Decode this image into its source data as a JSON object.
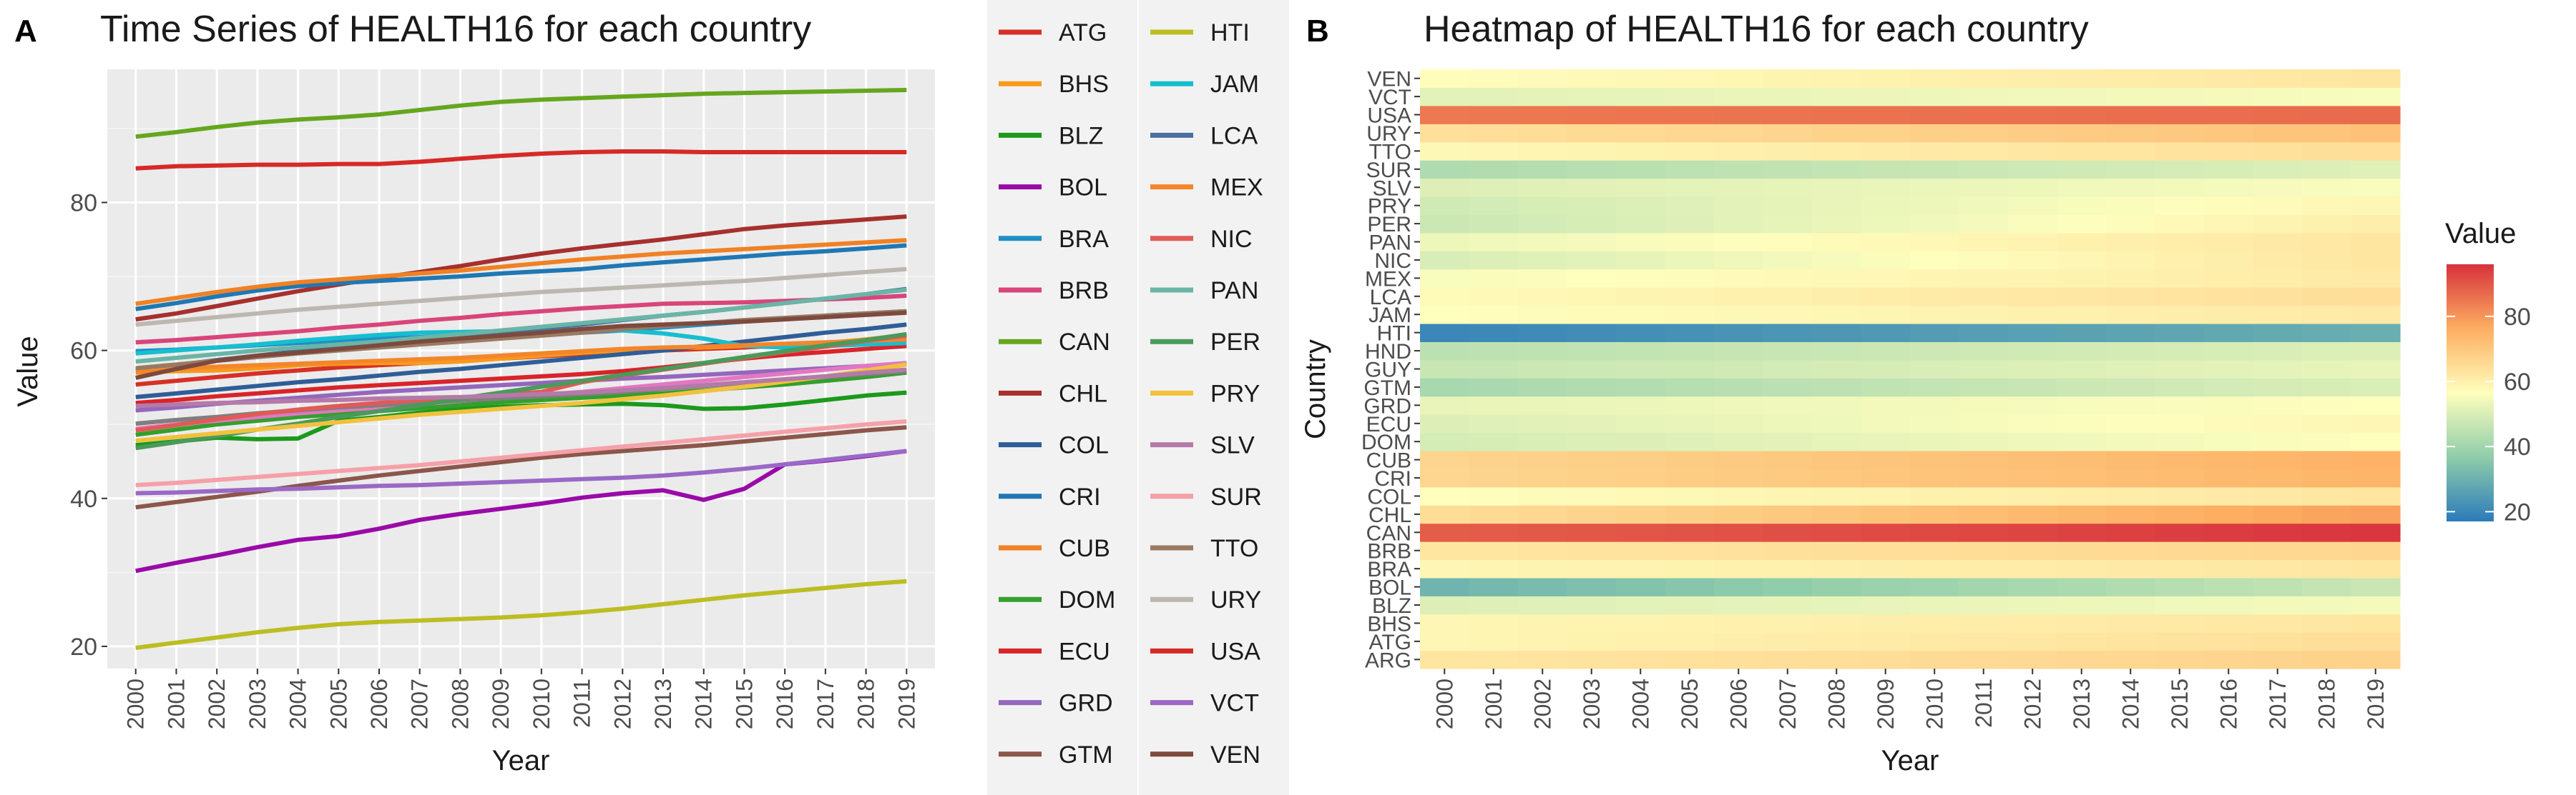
{
  "panel_a": {
    "tag": "A",
    "title": "Time Series of HEALTH16 for each country",
    "xlabel": "Year",
    "ylabel": "Value"
  },
  "panel_b": {
    "tag": "B",
    "title": "Heatmap of HEALTH16 for each country",
    "xlabel": "Year",
    "ylabel": "Country",
    "colorbar_title": "Value"
  },
  "colors": {
    "ATG": "#d73027",
    "BHS": "#f79a1c",
    "BLZ": "#1b9a1b",
    "BOL": "#9a0aa8",
    "BRA": "#1e8fc6",
    "BRB": "#d9457a",
    "CAN": "#66a61e",
    "CHL": "#a6302e",
    "COL": "#2f5d98",
    "CRI": "#1f78b4",
    "CUB": "#f08124",
    "DOM": "#33a02c",
    "ECU": "#d8242a",
    "GRD": "#9467bd",
    "GTM": "#8c564b",
    "GUY": "#e377c2",
    "HND": "#7f7f7f",
    "HTI": "#bcbd22",
    "JAM": "#17becf",
    "LCA": "#4a6fa0",
    "MEX": "#f4862a",
    "NIC": "#e05a57",
    "PAN": "#6ab5a6",
    "PER": "#4a9a5a",
    "PRY": "#f2c13d",
    "SLV": "#b57aa8",
    "SUR": "#f6a0a8",
    "TTO": "#9a7a62",
    "URY": "#bcb7b0",
    "USA": "#d62a27",
    "VCT": "#9a68c6",
    "VEN": "#7d4a3e"
  },
  "chart_data": [
    {
      "type": "line",
      "x": [
        2000,
        2001,
        2002,
        2003,
        2004,
        2005,
        2006,
        2007,
        2008,
        2009,
        2010,
        2011,
        2012,
        2013,
        2014,
        2015,
        2016,
        2017,
        2018,
        2019
      ],
      "xlim": [
        1999.3,
        2019.7
      ],
      "ylim": [
        17,
        98
      ],
      "yticks": [
        20,
        40,
        60,
        80
      ],
      "grid": true,
      "legend_position": "right",
      "series": [
        {
          "name": "ATG",
          "values": [
            55.4,
            55.9,
            56.4,
            56.9,
            57.3,
            57.7,
            58.0,
            58.3,
            58.6,
            58.9,
            59.2,
            59.5,
            59.7,
            60.0,
            60.2,
            60.4,
            60.7,
            60.9,
            61.1,
            61.4
          ]
        },
        {
          "name": "BHS",
          "values": [
            57.0,
            57.2,
            57.3,
            57.6,
            58.0,
            58.2,
            58.3,
            58.3,
            58.5,
            58.9,
            59.3,
            59.7,
            60.0,
            60.3,
            60.4,
            60.6,
            60.8,
            61.0,
            61.5,
            62.1
          ]
        },
        {
          "name": "BLZ",
          "values": [
            47.2,
            47.7,
            48.2,
            48.0,
            48.1,
            50.5,
            51.0,
            51.6,
            52.1,
            52.4,
            52.6,
            52.7,
            52.8,
            52.6,
            52.1,
            52.2,
            52.7,
            53.3,
            53.9,
            54.3
          ]
        },
        {
          "name": "BOL",
          "values": [
            30.2,
            31.3,
            32.3,
            33.4,
            34.4,
            34.9,
            35.9,
            37.1,
            37.9,
            38.6,
            39.3,
            40.1,
            40.7,
            41.1,
            39.8,
            41.3,
            44.6,
            45.1,
            45.7,
            46.4
          ]
        },
        {
          "name": "BRA",
          "values": [
            59.9,
            60.1,
            60.4,
            60.7,
            61.0,
            61.3,
            61.6,
            61.8,
            62.0,
            62.1,
            62.2,
            62.4,
            62.7,
            63.1,
            63.5,
            63.9,
            64.3,
            64.7,
            65.0,
            65.3
          ]
        },
        {
          "name": "BRB",
          "values": [
            61.1,
            61.4,
            61.8,
            62.2,
            62.6,
            63.1,
            63.5,
            64.0,
            64.4,
            64.9,
            65.3,
            65.7,
            66.0,
            66.3,
            66.4,
            66.5,
            66.7,
            66.9,
            67.1,
            67.4
          ]
        },
        {
          "name": "CAN",
          "values": [
            88.9,
            89.5,
            90.2,
            90.8,
            91.2,
            91.5,
            91.9,
            92.5,
            93.1,
            93.6,
            93.9,
            94.1,
            94.3,
            94.5,
            94.7,
            94.8,
            94.9,
            95.0,
            95.1,
            95.2
          ]
        },
        {
          "name": "CHL",
          "values": [
            64.2,
            65.0,
            66.0,
            67.0,
            68.0,
            68.9,
            69.8,
            70.6,
            71.4,
            72.3,
            73.1,
            73.8,
            74.4,
            75.0,
            75.7,
            76.4,
            76.9,
            77.3,
            77.7,
            78.1
          ]
        },
        {
          "name": "COL",
          "values": [
            53.7,
            54.2,
            54.7,
            55.2,
            55.7,
            56.1,
            56.6,
            57.1,
            57.5,
            58.0,
            58.5,
            59.0,
            59.5,
            60.0,
            60.6,
            61.2,
            61.8,
            62.4,
            62.9,
            63.5
          ]
        },
        {
          "name": "CRI",
          "values": [
            65.6,
            66.4,
            67.3,
            68.1,
            68.7,
            69.1,
            69.4,
            69.7,
            70.0,
            70.4,
            70.7,
            71.0,
            71.5,
            71.9,
            72.3,
            72.7,
            73.1,
            73.4,
            73.8,
            74.2
          ]
        },
        {
          "name": "CUB",
          "values": [
            66.3,
            67.1,
            67.9,
            68.6,
            69.2,
            69.6,
            70.0,
            70.4,
            70.8,
            71.3,
            71.8,
            72.3,
            72.7,
            73.1,
            73.4,
            73.7,
            74.0,
            74.3,
            74.6,
            74.9
          ]
        },
        {
          "name": "DOM",
          "values": [
            48.6,
            49.3,
            50.0,
            50.5,
            51.0,
            51.4,
            51.8,
            52.2,
            52.6,
            53.0,
            53.3,
            53.6,
            53.9,
            54.2,
            54.6,
            55.0,
            55.4,
            55.9,
            56.4,
            57.0
          ]
        },
        {
          "name": "ECU",
          "values": [
            52.9,
            53.3,
            53.8,
            54.2,
            54.6,
            55.0,
            55.3,
            55.6,
            55.9,
            56.2,
            56.5,
            56.8,
            57.2,
            57.7,
            58.3,
            58.9,
            59.4,
            59.8,
            60.2,
            60.6
          ]
        },
        {
          "name": "GRD",
          "values": [
            51.9,
            52.3,
            52.8,
            53.2,
            53.6,
            54.0,
            54.4,
            54.7,
            55.0,
            55.3,
            55.6,
            55.9,
            56.2,
            56.4,
            56.7,
            57.0,
            57.3,
            57.6,
            57.9,
            58.2
          ]
        },
        {
          "name": "GTM",
          "values": [
            38.8,
            39.5,
            40.2,
            40.9,
            41.7,
            42.4,
            43.1,
            43.7,
            44.3,
            44.9,
            45.5,
            46.0,
            46.4,
            46.8,
            47.2,
            47.7,
            48.2,
            48.7,
            49.2,
            49.6
          ]
        },
        {
          "name": "GUY",
          "values": [
            49.4,
            50.0,
            50.5,
            51.0,
            51.5,
            51.9,
            52.3,
            52.7,
            53.2,
            53.6,
            54.0,
            54.4,
            54.9,
            55.4,
            55.9,
            56.4,
            56.9,
            57.4,
            57.9,
            58.3
          ]
        },
        {
          "name": "HND",
          "values": [
            50.1,
            50.6,
            51.0,
            51.5,
            51.9,
            52.3,
            52.6,
            52.9,
            53.2,
            53.5,
            53.8,
            54.1,
            54.4,
            54.8,
            55.2,
            55.6,
            56.0,
            56.4,
            56.8,
            57.2
          ]
        },
        {
          "name": "HTI",
          "values": [
            19.8,
            20.5,
            21.2,
            21.9,
            22.5,
            23.0,
            23.3,
            23.5,
            23.7,
            23.9,
            24.2,
            24.6,
            25.1,
            25.7,
            26.3,
            26.9,
            27.4,
            27.9,
            28.4,
            28.8
          ]
        },
        {
          "name": "JAM",
          "values": [
            59.6,
            60.0,
            60.4,
            60.8,
            61.3,
            61.7,
            62.1,
            62.4,
            62.5,
            62.6,
            62.7,
            62.8,
            62.7,
            62.3,
            61.6,
            60.6,
            60.4,
            60.6,
            60.8,
            61.0
          ]
        },
        {
          "name": "LCA",
          "values": [
            57.3,
            58.0,
            58.7,
            59.3,
            59.9,
            60.5,
            61.0,
            61.5,
            62.0,
            62.5,
            63.0,
            63.5,
            64.1,
            64.7,
            65.2,
            65.8,
            66.4,
            67.0,
            67.6,
            68.3
          ]
        },
        {
          "name": "MEX",
          "values": [
            57.1,
            57.5,
            57.8,
            58.0,
            58.2,
            58.4,
            58.6,
            58.8,
            59.0,
            59.3,
            59.6,
            59.9,
            60.2,
            60.4,
            60.5,
            60.7,
            60.9,
            61.1,
            61.3,
            61.5
          ]
        },
        {
          "name": "NIC",
          "values": [
            49.2,
            49.9,
            50.7,
            51.4,
            52.0,
            52.5,
            52.9,
            53.3,
            53.6,
            54.0,
            54.4,
            55.7,
            56.6,
            57.4,
            58.2,
            59.0,
            59.8,
            60.5,
            61.3,
            62.0
          ]
        },
        {
          "name": "PAN",
          "values": [
            58.5,
            59.0,
            59.5,
            60.0,
            60.4,
            60.8,
            61.2,
            61.7,
            62.2,
            62.7,
            63.2,
            63.7,
            64.2,
            64.7,
            65.2,
            65.8,
            66.4,
            67.0,
            67.6,
            68.2
          ]
        },
        {
          "name": "PER",
          "values": [
            46.8,
            47.6,
            48.4,
            49.3,
            50.1,
            51.0,
            51.8,
            52.6,
            53.5,
            54.3,
            55.1,
            55.9,
            56.7,
            57.5,
            58.3,
            59.1,
            59.9,
            60.7,
            61.4,
            62.2
          ]
        },
        {
          "name": "PRY",
          "values": [
            47.8,
            48.3,
            48.8,
            49.3,
            49.8,
            50.3,
            50.8,
            51.3,
            51.7,
            52.1,
            52.5,
            52.9,
            53.4,
            53.9,
            54.5,
            55.1,
            55.8,
            56.5,
            57.3,
            58.1
          ]
        },
        {
          "name": "SLV",
          "values": [
            52.5,
            52.7,
            52.9,
            53.0,
            53.2,
            53.3,
            53.5,
            53.6,
            53.7,
            53.9,
            54.1,
            54.3,
            54.6,
            54.9,
            55.3,
            55.7,
            56.1,
            56.5,
            57.0,
            57.4
          ]
        },
        {
          "name": "SUR",
          "values": [
            41.8,
            42.1,
            42.5,
            42.9,
            43.3,
            43.7,
            44.1,
            44.5,
            45.0,
            45.5,
            46.0,
            46.5,
            47.0,
            47.5,
            48.0,
            48.5,
            49.0,
            49.5,
            50.0,
            50.4
          ]
        },
        {
          "name": "TTO",
          "values": [
            57.6,
            58.1,
            58.6,
            59.1,
            59.6,
            60.0,
            60.4,
            60.8,
            61.2,
            61.6,
            62.0,
            62.4,
            62.9,
            63.3,
            63.7,
            64.1,
            64.4,
            64.7,
            65.0,
            65.3
          ]
        },
        {
          "name": "URY",
          "values": [
            63.5,
            64.0,
            64.5,
            65.0,
            65.5,
            65.9,
            66.3,
            66.7,
            67.1,
            67.5,
            67.9,
            68.2,
            68.5,
            68.8,
            69.1,
            69.4,
            69.8,
            70.2,
            70.6,
            71.0
          ]
        },
        {
          "name": "USA",
          "values": [
            84.6,
            84.9,
            85.0,
            85.1,
            85.1,
            85.2,
            85.2,
            85.5,
            85.9,
            86.3,
            86.6,
            86.8,
            86.9,
            86.9,
            86.8,
            86.8,
            86.8,
            86.8,
            86.8,
            86.8
          ]
        },
        {
          "name": "VCT",
          "values": [
            40.7,
            40.8,
            41.0,
            41.2,
            41.3,
            41.5,
            41.7,
            41.8,
            42.0,
            42.2,
            42.4,
            42.6,
            42.8,
            43.1,
            43.5,
            44.0,
            44.6,
            45.2,
            45.8,
            46.4
          ]
        },
        {
          "name": "VEN",
          "values": [
            56.3,
            57.5,
            58.6,
            59.3,
            59.7,
            60.2,
            60.7,
            61.2,
            61.6,
            62.0,
            62.4,
            62.9,
            63.3,
            63.5,
            63.7,
            63.9,
            64.2,
            64.5,
            64.8,
            65.1
          ]
        }
      ]
    },
    {
      "type": "heatmap",
      "x": [
        2000,
        2001,
        2002,
        2003,
        2004,
        2005,
        2006,
        2007,
        2008,
        2009,
        2010,
        2011,
        2012,
        2013,
        2014,
        2015,
        2016,
        2017,
        2018,
        2019
      ],
      "y": [
        "ARG",
        "ATG",
        "BHS",
        "BLZ",
        "BOL",
        "BRA",
        "BRB",
        "CAN",
        "CHL",
        "COL",
        "CRI",
        "CUB",
        "DOM",
        "ECU",
        "GRD",
        "GTM",
        "GUY",
        "HND",
        "HTI",
        "JAM",
        "LCA",
        "MEX",
        "NIC",
        "PAN",
        "PER",
        "PRY",
        "SLV",
        "SUR",
        "TTO",
        "URY",
        "USA",
        "VCT",
        "VEN"
      ],
      "row_start": [
        62.0,
        58.0,
        58.0,
        50.0,
        30.2,
        58.0,
        62.0,
        88.9,
        64.2,
        56.0,
        66.0,
        66.3,
        48.5,
        50.0,
        52.0,
        40.5,
        46.0,
        44.0,
        19.8,
        56.0,
        57.0,
        55.0,
        49.2,
        53.0,
        46.8,
        47.8,
        50.0,
        41.8,
        57.6,
        63.5,
        84.6,
        51.0,
        56.3
      ],
      "row_end": [
        67.0,
        64.0,
        62.0,
        54.3,
        46.4,
        62.0,
        66.0,
        95.2,
        78.1,
        62.0,
        74.2,
        74.9,
        56.0,
        58.0,
        56.0,
        49.6,
        52.0,
        50.0,
        28.8,
        61.0,
        64.0,
        61.0,
        62.0,
        62.0,
        60.0,
        58.0,
        55.0,
        50.4,
        64.0,
        71.0,
        86.8,
        55.0,
        62.0
      ],
      "colorbar": {
        "min": 17,
        "max": 96,
        "ticks": [
          20,
          40,
          60,
          80
        ],
        "scale": "RdYlBu (reversed)"
      },
      "legend_position": "right"
    }
  ]
}
